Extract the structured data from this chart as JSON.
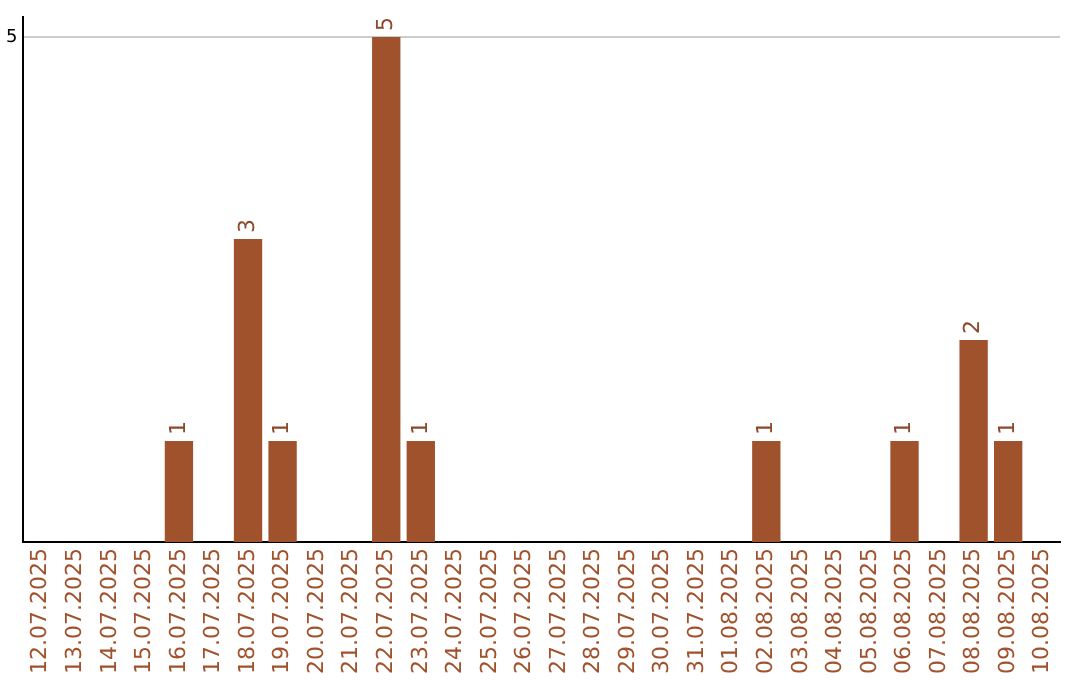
{
  "chart_data": {
    "type": "bar",
    "categories": [
      "12.07.2025",
      "13.07.2025",
      "14.07.2025",
      "15.07.2025",
      "16.07.2025",
      "17.07.2025",
      "18.07.2025",
      "19.07.2025",
      "20.07.2025",
      "21.07.2025",
      "22.07.2025",
      "23.07.2025",
      "24.07.2025",
      "25.07.2025",
      "26.07.2025",
      "27.07.2025",
      "28.07.2025",
      "29.07.2025",
      "30.07.2025",
      "31.07.2025",
      "01.08.2025",
      "02.08.2025",
      "03.08.2025",
      "04.08.2025",
      "05.08.2025",
      "06.08.2025",
      "07.08.2025",
      "08.08.2025",
      "09.08.2025",
      "10.08.2025"
    ],
    "values": [
      0,
      0,
      0,
      0,
      1,
      0,
      3,
      1,
      0,
      0,
      5,
      1,
      0,
      0,
      0,
      0,
      0,
      0,
      0,
      0,
      0,
      1,
      0,
      0,
      0,
      1,
      0,
      2,
      1,
      0
    ],
    "value_labels": [
      null,
      null,
      null,
      null,
      "1",
      null,
      "3",
      "1",
      null,
      null,
      "5",
      "1",
      null,
      null,
      null,
      null,
      null,
      null,
      null,
      null,
      null,
      "1",
      null,
      null,
      null,
      "1",
      null,
      "2",
      "1",
      null
    ],
    "color": "#a0522d",
    "ylim": [
      0,
      5.2
    ],
    "yticks": [
      5
    ],
    "grid": "y",
    "legend": false
  }
}
